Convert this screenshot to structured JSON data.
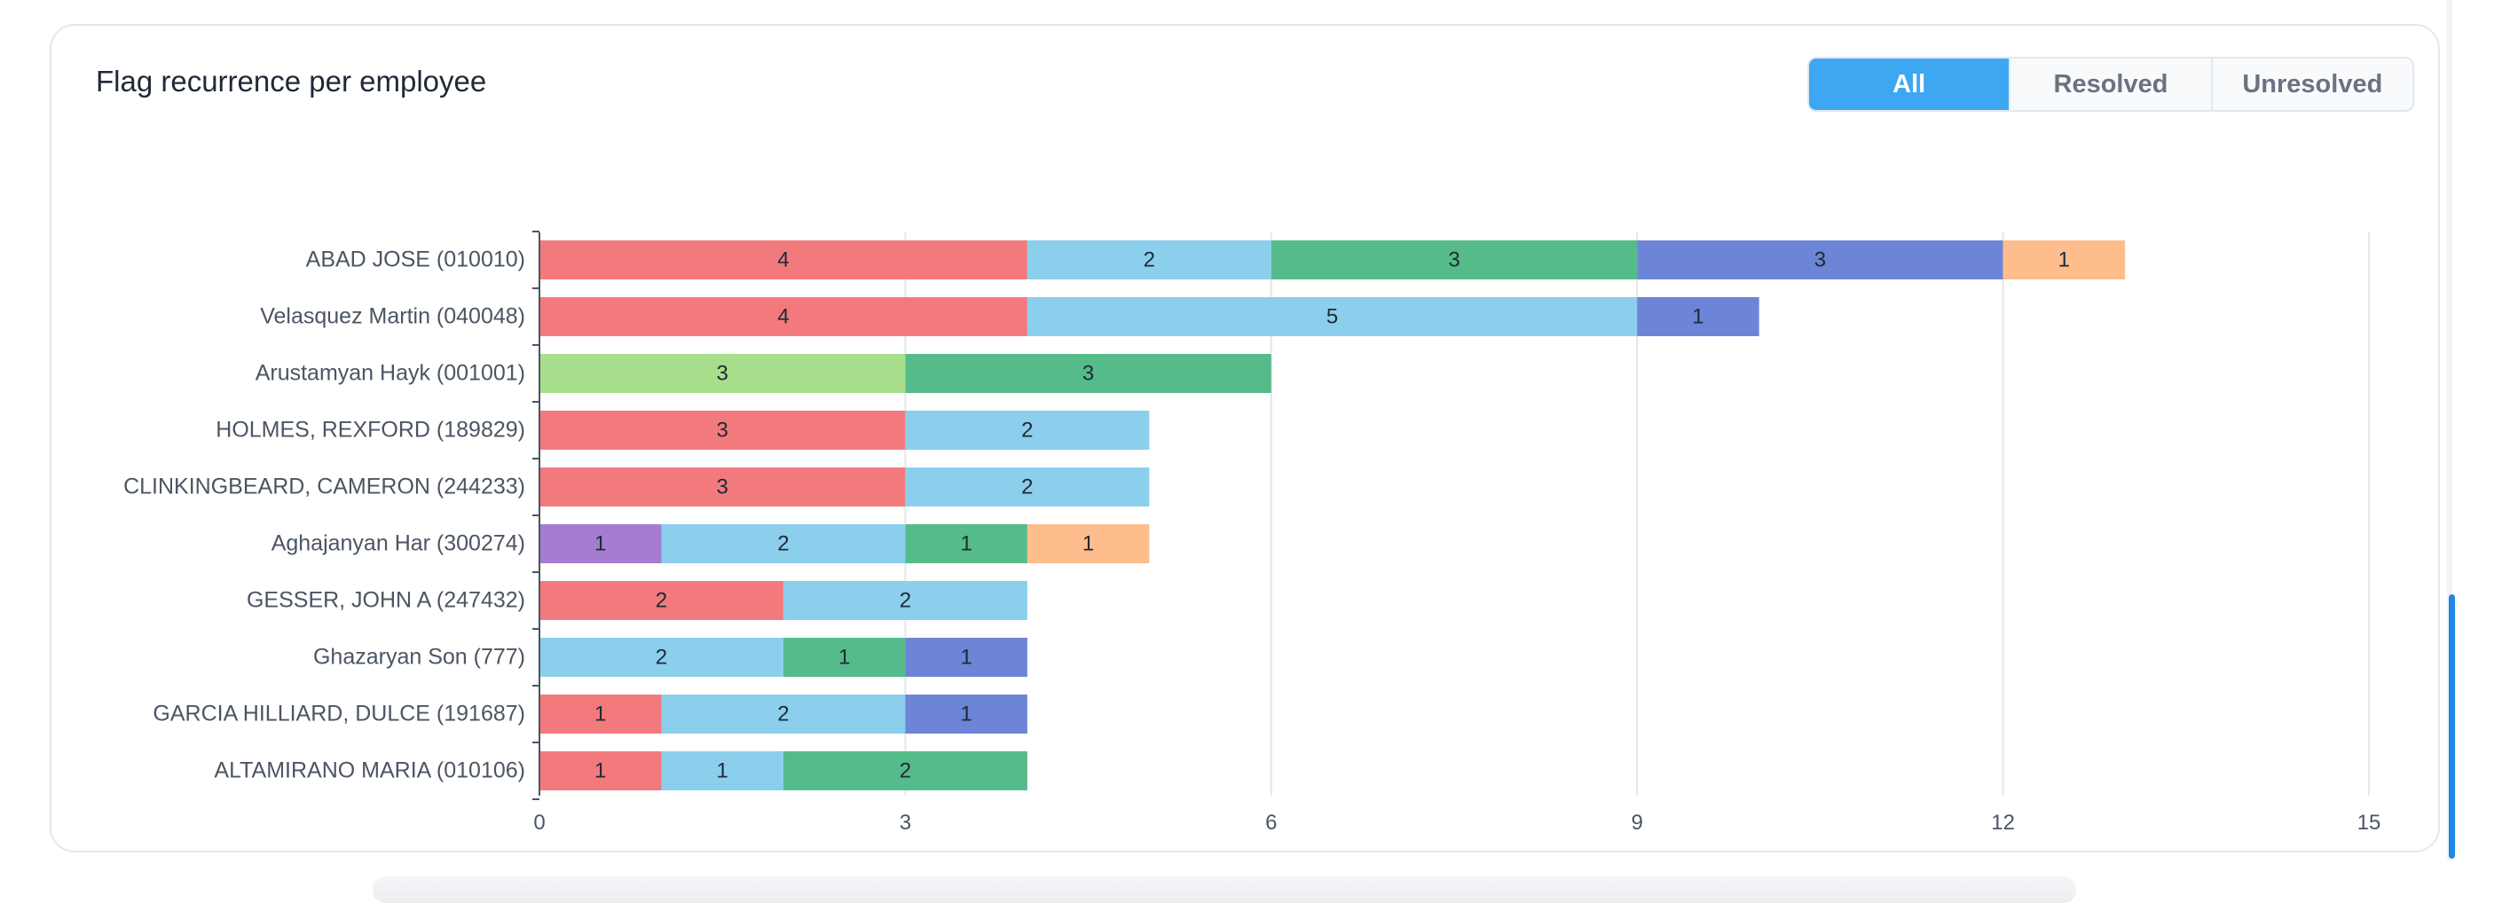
{
  "card": {
    "title": "Flag recurrence per employee"
  },
  "filters": {
    "all": "All",
    "resolved": "Resolved",
    "unresolved": "Unresolved",
    "selected": "All"
  },
  "colors": {
    "accent": "#3ea7f2",
    "scrollbar": "#1e88e5"
  },
  "chart_data": {
    "type": "bar",
    "orientation": "horizontal",
    "stacked": true,
    "xlim": [
      0,
      15
    ],
    "xticks": [
      0,
      3,
      6,
      9,
      12,
      15
    ],
    "grid": true,
    "categories": [
      "ABAD JOSE (010010)",
      "Velasquez Martin (040048)",
      "Arustamyan Hayk (001001)",
      "HOLMES, REXFORD (189829)",
      "CLINKINGBEARD, CAMERON (244233)",
      "Aghajanyan Har (300274)",
      "GESSER, JOHN A (247432)",
      "Ghazaryan Son (777)",
      "GARCIA HILLIARD, DULCE (191687)",
      "ALTAMIRANO MARIA (010106)"
    ],
    "rows": [
      [
        {
          "value": 4,
          "color": "#f27a7d"
        },
        {
          "value": 2,
          "color": "#8ccfed"
        },
        {
          "value": 3,
          "color": "#56bb8a"
        },
        {
          "value": 3,
          "color": "#6c85d6"
        },
        {
          "value": 1,
          "color": "#fdbd8c"
        }
      ],
      [
        {
          "value": 4,
          "color": "#f27a7d"
        },
        {
          "value": 5,
          "color": "#8ccfed"
        },
        {
          "value": 1,
          "color": "#6c85d6"
        }
      ],
      [
        {
          "value": 3,
          "color": "#a7de8c"
        },
        {
          "value": 3,
          "color": "#56bb8a"
        }
      ],
      [
        {
          "value": 3,
          "color": "#f27a7d"
        },
        {
          "value": 2,
          "color": "#8ccfed"
        }
      ],
      [
        {
          "value": 3,
          "color": "#f27a7d"
        },
        {
          "value": 2,
          "color": "#8ccfed"
        }
      ],
      [
        {
          "value": 1,
          "color": "#a57ccf"
        },
        {
          "value": 2,
          "color": "#8ccfed"
        },
        {
          "value": 1,
          "color": "#56bb8a"
        },
        {
          "value": 1,
          "color": "#fdbd8c"
        }
      ],
      [
        {
          "value": 2,
          "color": "#f27a7d"
        },
        {
          "value": 2,
          "color": "#8ccfed"
        }
      ],
      [
        {
          "value": 2,
          "color": "#8ccfed"
        },
        {
          "value": 1,
          "color": "#56bb8a"
        },
        {
          "value": 1,
          "color": "#6c85d6"
        }
      ],
      [
        {
          "value": 1,
          "color": "#f27a7d"
        },
        {
          "value": 2,
          "color": "#8ccfed"
        },
        {
          "value": 1,
          "color": "#6c85d6"
        }
      ],
      [
        {
          "value": 1,
          "color": "#f27a7d"
        },
        {
          "value": 1,
          "color": "#8ccfed"
        },
        {
          "value": 2,
          "color": "#56bb8a"
        }
      ]
    ]
  }
}
